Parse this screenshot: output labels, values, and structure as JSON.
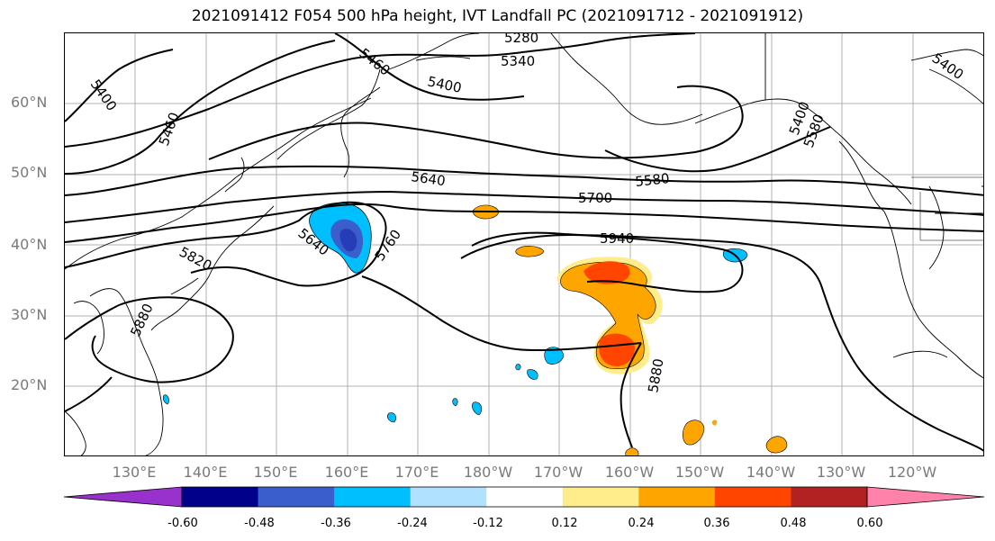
{
  "title": "2021091412 F054 500 hPa height, IVT Landfall PC (2021091712 - 2021091912)",
  "latitude_labels": [
    "60°N",
    "50°N",
    "40°N",
    "30°N",
    "20°N"
  ],
  "longitude_labels": [
    "130°E",
    "140°E",
    "150°E",
    "160°E",
    "170°E",
    "180°W",
    "170°W",
    "160°W",
    "150°W",
    "140°W",
    "130°W",
    "120°W"
  ],
  "contour_labels": [
    "5280",
    "5340",
    "5400",
    "5460",
    "5400",
    "5460",
    "5400",
    "5400",
    "5640",
    "5580",
    "5700",
    "5940",
    "5640",
    "5760",
    "5820",
    "5880",
    "5880",
    "5580"
  ],
  "colorbar": {
    "ticks": [
      "-0.60",
      "-0.48",
      "-0.36",
      "-0.24",
      "-0.12",
      "0.12",
      "0.24",
      "0.36",
      "0.48",
      "0.60"
    ],
    "colors": [
      "#9932cc",
      "#00008b",
      "#3a5fcd",
      "#00bfff",
      "#b0e2ff",
      "#ffffff",
      "#ffec8b",
      "#ffa500",
      "#ff4500",
      "#b22222",
      "#ff82ab"
    ]
  },
  "colors": {
    "contour": "#000000",
    "coast": "#000000",
    "grid": "#b0b0b0"
  }
}
